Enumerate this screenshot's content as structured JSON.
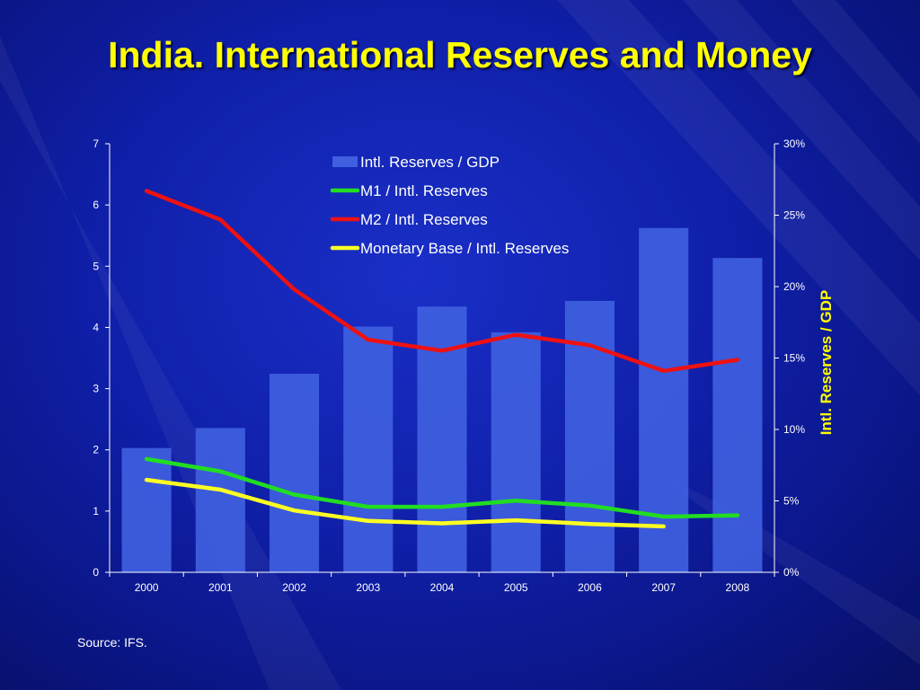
{
  "slide": {
    "title": "India.  International Reserves and Money",
    "source": "Source: IFS."
  },
  "colors": {
    "background": "#0f1fa8",
    "title": "#ffff00",
    "bars": "#3f5fe0",
    "m1": "#22dd22",
    "m2": "#ee1111",
    "monetary_base": "#ffff22",
    "axis": "#ffffff",
    "right_axis_label": "#ffff00"
  },
  "chart_data": {
    "type": "bar",
    "categories": [
      "2000",
      "2001",
      "2002",
      "2003",
      "2004",
      "2005",
      "2006",
      "2007",
      "2008"
    ],
    "series": [
      {
        "name": "Intl. Reserves / GDP",
        "type": "bar",
        "axis": "right",
        "values": [
          8.7,
          10.1,
          13.9,
          17.2,
          18.6,
          16.8,
          19.0,
          24.1,
          22.0
        ]
      },
      {
        "name": "M1 / Intl. Reserves",
        "type": "line",
        "axis": "left",
        "values": [
          1.85,
          1.65,
          1.27,
          1.07,
          1.07,
          1.17,
          1.09,
          0.91,
          0.93
        ]
      },
      {
        "name": "M2 / Intl. Reserves",
        "type": "line",
        "axis": "left",
        "values": [
          6.23,
          5.76,
          4.62,
          3.8,
          3.62,
          3.88,
          3.71,
          3.29,
          3.47
        ]
      },
      {
        "name": "Monetary Base / Intl. Reserves",
        "type": "line",
        "axis": "left",
        "values": [
          1.51,
          1.35,
          1.01,
          0.84,
          0.8,
          0.85,
          0.79,
          0.75,
          null
        ]
      }
    ],
    "left_axis": {
      "ylim": [
        0,
        7
      ],
      "ticks": [
        "0",
        "1",
        "2",
        "3",
        "4",
        "5",
        "6",
        "7"
      ]
    },
    "right_axis": {
      "label": "Intl. Reserves / GDP",
      "ylim": [
        0,
        30
      ],
      "ticks": [
        "0%",
        "5%",
        "10%",
        "15%",
        "20%",
        "25%",
        "30%"
      ]
    },
    "legend_position": "top-center",
    "grid": false
  }
}
